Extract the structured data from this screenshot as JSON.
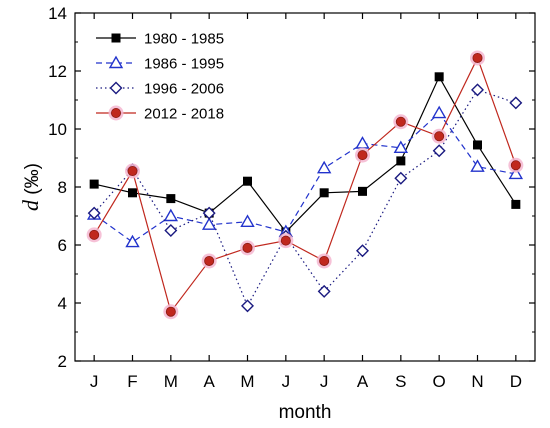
{
  "chart_data": {
    "type": "line",
    "title": "",
    "xlabel": "month",
    "ylabel_var": "d",
    "ylabel_unit": " (‰)",
    "categories": [
      "J",
      "F",
      "M",
      "A",
      "M",
      "J",
      "J",
      "A",
      "S",
      "O",
      "N",
      "D"
    ],
    "ylim": [
      2,
      14
    ],
    "yticks": [
      2,
      4,
      6,
      8,
      10,
      12,
      14
    ],
    "grid": false,
    "legend_position": "top-left",
    "series": [
      {
        "name": "1980 - 1985",
        "color": "#000000",
        "line_style": "solid",
        "marker": "filled-square",
        "values": [
          8.1,
          7.8,
          7.6,
          7.1,
          8.2,
          6.45,
          7.8,
          7.85,
          8.9,
          11.8,
          9.45,
          7.4
        ]
      },
      {
        "name": "1986 - 1995",
        "color": "#2233cc",
        "line_style": "dashed",
        "marker": "open-triangle",
        "values": [
          7.05,
          6.1,
          7.0,
          6.7,
          6.8,
          6.45,
          8.65,
          9.5,
          9.35,
          10.55,
          8.7,
          8.45
        ]
      },
      {
        "name": "1996 - 2006",
        "color": "#1a1a80",
        "line_style": "dotted",
        "marker": "open-diamond",
        "values": [
          7.1,
          8.6,
          6.5,
          7.1,
          3.9,
          6.3,
          4.4,
          5.8,
          8.3,
          9.25,
          11.35,
          10.9
        ]
      },
      {
        "name": "2012 - 2018",
        "color": "#c0281e",
        "line_style": "solid",
        "marker": "filled-circle",
        "values": [
          6.35,
          8.55,
          3.7,
          5.45,
          5.9,
          6.15,
          5.45,
          9.1,
          10.25,
          9.75,
          12.45,
          8.75
        ]
      }
    ]
  }
}
